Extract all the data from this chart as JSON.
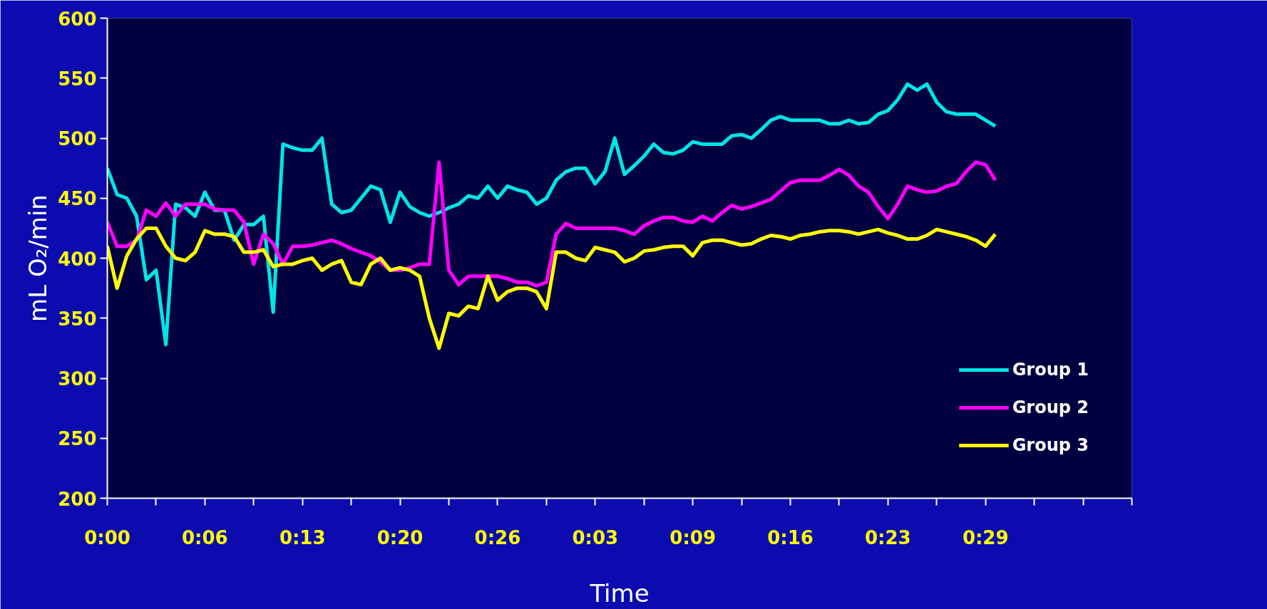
{
  "chart_data": {
    "type": "line",
    "xlabel": "Time",
    "ylabel": "mL O₂/min",
    "categories": [
      "0:00",
      null,
      null,
      null,
      null,
      null,
      null,
      null,
      null,
      null,
      "0:06",
      null,
      null,
      null,
      null,
      null,
      null,
      null,
      null,
      null,
      "0:13",
      null,
      null,
      null,
      null,
      null,
      null,
      null,
      null,
      null,
      "0:20",
      null,
      null,
      null,
      null,
      null,
      null,
      null,
      null,
      null,
      "0:26",
      null,
      null,
      null,
      null,
      null,
      null,
      null,
      null,
      null,
      "0:03",
      null,
      null,
      null,
      null,
      null,
      null,
      null,
      null,
      null,
      "0:09",
      null,
      null,
      null,
      null,
      null,
      null,
      null,
      null,
      null,
      "0:16",
      null,
      null,
      null,
      null,
      null,
      null,
      null,
      null,
      null,
      "0:23",
      null,
      null,
      null,
      null,
      null,
      null,
      null,
      null,
      null,
      "0:29",
      null,
      null,
      null,
      null,
      null,
      null,
      null,
      null,
      null,
      null,
      null,
      null,
      null,
      null,
      null
    ],
    "ylim": [
      200,
      600
    ],
    "yticks": [
      200,
      250,
      300,
      350,
      400,
      450,
      500,
      550,
      600
    ],
    "grid": false,
    "legend": "bottom right",
    "marker": "none",
    "line_style": "solid",
    "series": [
      {
        "name": "Group 1",
        "color": "#00e5e5",
        "values": [
          475,
          453,
          450,
          435,
          382,
          390,
          328,
          445,
          442,
          435,
          455,
          440,
          440,
          415,
          428,
          428,
          435,
          355,
          495,
          492,
          490,
          490,
          500,
          445,
          438,
          440,
          450,
          460,
          457,
          430,
          455,
          443,
          438,
          435,
          438,
          442,
          445,
          452,
          450,
          460,
          450,
          460,
          457,
          455,
          445,
          450,
          465,
          472,
          475,
          475,
          462,
          472,
          500,
          470,
          477,
          485,
          495,
          488,
          487,
          490,
          497,
          495,
          495,
          495,
          502,
          503,
          500,
          507,
          515,
          518,
          515,
          515,
          515,
          515,
          512,
          512,
          515,
          512,
          513,
          520,
          523,
          532,
          545,
          540,
          545,
          530,
          522,
          520,
          520,
          520,
          515,
          510,
          null,
          null,
          null,
          null,
          null,
          null,
          null,
          null,
          null,
          null,
          null,
          null,
          null,
          null
        ]
      },
      {
        "name": "Group 2",
        "color": "#ff00ff",
        "values": [
          430,
          410,
          410,
          415,
          440,
          435,
          446,
          435,
          445,
          445,
          445,
          441,
          440,
          440,
          430,
          395,
          420,
          412,
          395,
          410,
          410,
          411,
          413,
          415,
          412,
          408,
          405,
          402,
          397,
          390,
          390,
          392,
          395,
          395,
          480,
          390,
          378,
          385,
          385,
          385,
          385,
          383,
          380,
          380,
          377,
          380,
          420,
          429,
          425,
          425,
          425,
          425,
          425,
          423,
          420,
          427,
          431,
          434,
          434,
          431,
          430,
          435,
          431,
          438,
          444,
          441,
          443,
          446,
          449,
          456,
          463,
          465,
          465,
          465,
          469,
          474,
          469,
          460,
          455,
          443,
          433,
          445,
          460,
          457,
          455,
          456,
          460,
          462,
          472,
          480,
          478,
          465,
          null,
          null,
          null,
          null,
          null,
          null,
          null,
          null,
          null,
          null,
          null,
          null,
          null,
          null
        ]
      },
      {
        "name": "Group 3",
        "color": "#ffff00",
        "values": [
          410,
          375,
          402,
          416,
          425,
          425,
          410,
          400,
          398,
          405,
          423,
          420,
          420,
          418,
          405,
          405,
          407,
          393,
          395,
          395,
          398,
          400,
          390,
          395,
          398,
          380,
          378,
          395,
          400,
          390,
          392,
          390,
          385,
          350,
          325,
          354,
          352,
          360,
          358,
          385,
          365,
          372,
          375,
          375,
          372,
          358,
          405,
          405,
          400,
          398,
          409,
          407,
          405,
          397,
          400,
          406,
          407,
          409,
          410,
          410,
          402,
          413,
          415,
          415,
          413,
          411,
          412,
          416,
          419,
          418,
          416,
          419,
          420,
          422,
          423,
          423,
          422,
          420,
          422,
          424,
          421,
          419,
          416,
          416,
          419,
          424,
          422,
          420,
          418,
          415,
          410,
          420,
          null,
          null,
          null,
          null,
          null,
          null,
          null,
          null,
          null,
          null,
          null,
          null,
          null,
          null
        ]
      }
    ]
  }
}
